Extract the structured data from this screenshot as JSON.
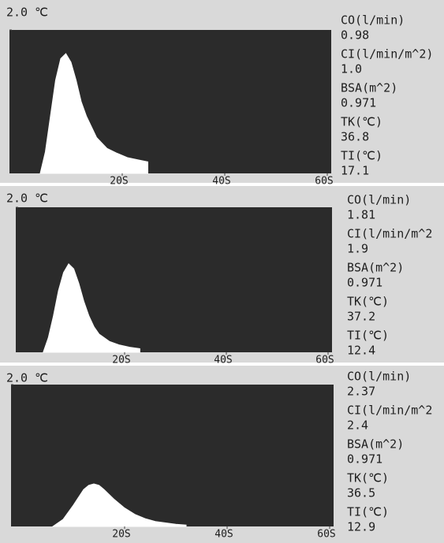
{
  "chart_data": [
    {
      "type": "area",
      "x": [
        4,
        5,
        6,
        7,
        8,
        9,
        10,
        11,
        12,
        13,
        14,
        15,
        17,
        19,
        21,
        23,
        25
      ],
      "values": [
        0,
        0.3,
        0.8,
        1.3,
        1.6,
        1.67,
        1.55,
        1.3,
        1.0,
        0.8,
        0.65,
        0.5,
        0.35,
        0.28,
        0.22,
        0.19,
        0.16
      ],
      "color": "#ffffff",
      "xlim": [
        0,
        60
      ],
      "ylim": [
        0,
        2.0
      ],
      "xticks": [
        {
          "value": 20,
          "label": "20S"
        },
        {
          "value": 40,
          "label": "40S"
        },
        {
          "value": 60,
          "label": "60S"
        }
      ],
      "yticks": [
        {
          "value": 2.0,
          "label": "2.0 ℃"
        }
      ],
      "readings": [
        {
          "label": "CO(l/min)",
          "value": "0.98"
        },
        {
          "label": "CI(l/min/m^2)",
          "value": "1.0"
        },
        {
          "label": "BSA(m^2)",
          "value": "0.971"
        },
        {
          "label": "TK(℃)",
          "value": "36.8"
        },
        {
          "label": "TI(℃)",
          "value": "17.1"
        }
      ]
    },
    {
      "type": "area",
      "x": [
        4,
        5,
        6,
        7,
        8,
        9,
        10,
        11,
        12,
        13,
        14,
        15,
        17,
        19,
        21,
        23
      ],
      "values": [
        0,
        0.2,
        0.5,
        0.85,
        1.1,
        1.22,
        1.15,
        0.95,
        0.7,
        0.5,
        0.35,
        0.25,
        0.15,
        0.1,
        0.07,
        0.05
      ],
      "color": "#ffffff",
      "xlim": [
        0,
        60
      ],
      "ylim": [
        0,
        2.0
      ],
      "xticks": [
        {
          "value": 20,
          "label": "20S"
        },
        {
          "value": 40,
          "label": "40S"
        },
        {
          "value": 60,
          "label": "60S"
        }
      ],
      "yticks": [
        {
          "value": 2.0,
          "label": "2.0 ℃"
        }
      ],
      "readings": [
        {
          "label": "CO(l/min)",
          "value": "1.81"
        },
        {
          "label": "CI(l/min/m^2",
          "value": "1.9"
        },
        {
          "label": "BSA(m^2)",
          "value": "0.971"
        },
        {
          "label": "TK(℃)",
          "value": "37.2"
        },
        {
          "label": "TI(℃)",
          "value": "12.4"
        }
      ]
    },
    {
      "type": "area",
      "x": [
        6,
        8,
        10,
        12,
        13,
        14,
        15,
        16,
        18,
        20,
        22,
        24,
        26,
        28,
        30,
        32
      ],
      "values": [
        0,
        0.1,
        0.3,
        0.52,
        0.58,
        0.6,
        0.58,
        0.52,
        0.38,
        0.26,
        0.17,
        0.11,
        0.07,
        0.05,
        0.03,
        0.02
      ],
      "color": "#ffffff",
      "xlim": [
        0,
        60
      ],
      "ylim": [
        0,
        2.0
      ],
      "xticks": [
        {
          "value": 20,
          "label": "20S"
        },
        {
          "value": 40,
          "label": "40S"
        },
        {
          "value": 60,
          "label": "60S"
        }
      ],
      "yticks": [
        {
          "value": 2.0,
          "label": "2.0 ℃"
        }
      ],
      "readings": [
        {
          "label": "CO(l/min)",
          "value": "2.37"
        },
        {
          "label": "CI(l/min/m^2",
          "value": "2.4"
        },
        {
          "label": "BSA(m^2)",
          "value": "0.971"
        },
        {
          "label": "TK(℃)",
          "value": "36.5"
        },
        {
          "label": "TI(℃)",
          "value": "12.9"
        }
      ]
    }
  ]
}
